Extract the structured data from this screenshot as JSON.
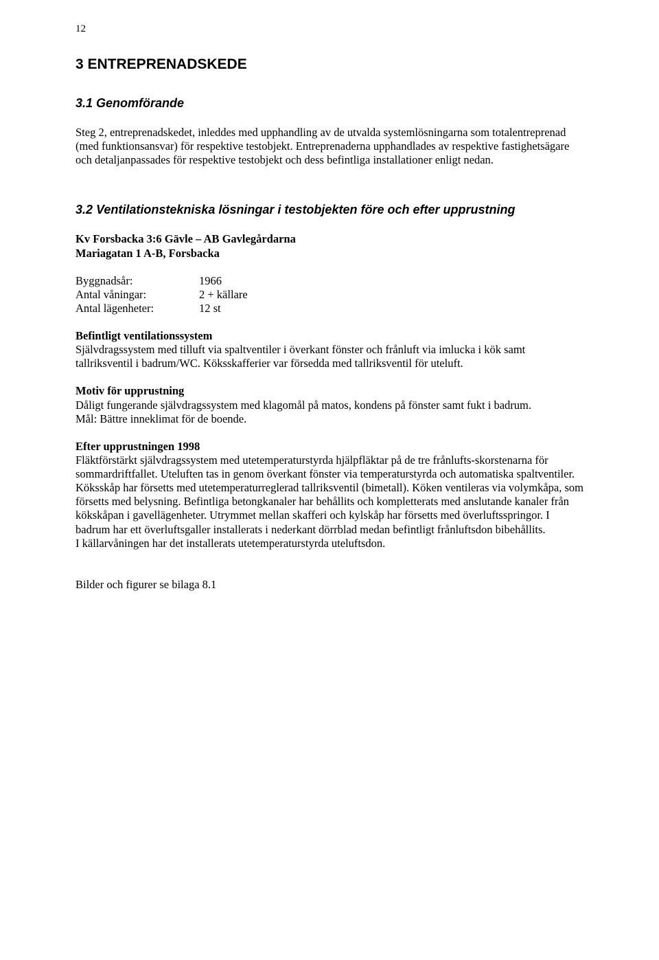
{
  "page_number": "12",
  "section3": {
    "heading": "3   ENTREPRENADSKEDE",
    "s31": {
      "heading": "3.1   Genomförande",
      "p1": "Steg 2, entreprenadskedet, inleddes med upphandling av de utvalda systemlösningarna som totalentreprenad (med funktionsansvar) för respektive testobjekt. Entreprenaderna upphandlades av respektive fastighetsägare och detaljanpassades för respektive testobjekt och dess befintliga installationer enligt nedan."
    },
    "s32": {
      "heading": "3.2   Ventilationstekniska lösningar i testobjekten före och efter upprustning",
      "object_title": "Kv Forsbacka 3:6 Gävle – AB Gavlegårdarna",
      "object_subtitle": "Mariagatan 1 A-B, Forsbacka",
      "specs": {
        "byggnadsar_label": "Byggnadsår:",
        "byggnadsar_value": "1966",
        "vaningar_label": "Antal våningar:",
        "vaningar_value": "2 + källare",
        "lagenheter_label": "Antal lägenheter:",
        "lagenheter_value": "12 st"
      },
      "befintligt": {
        "title": "Befintligt ventilationssystem",
        "text": "Självdragssystem med tilluft via spaltventiler i överkant fönster och frånluft via imlucka i kök samt tallriksventil i badrum/WC. Köksskafferier var försedda med tallriksventil för uteluft."
      },
      "motiv": {
        "title": "Motiv för upprustning",
        "text1": "Dåligt fungerande självdragssystem med klagomål på matos, kondens på fönster samt fukt i badrum.",
        "text2": "Mål: Bättre inneklimat för de boende."
      },
      "efter": {
        "title": "Efter upprustningen 1998",
        "text1": "Fläktförstärkt självdragssystem med utetemperaturstyrda hjälpfläktar på de tre frånlufts-skorstenarna för sommardriftfallet. Uteluften tas in genom överkant fönster via temperaturstyrda och automatiska spaltventiler. Köksskåp har försetts med utetemperaturreglerad tallriksventil (bimetall). Köken ventileras via volymkåpa, som försetts med belysning. Befintliga betongkanaler har behållits och kompletterats med anslutande kanaler från kökskåpan i gavellägenheter. Utrymmet mellan skafferi och kylskåp har försetts med överluftsspringor. I badrum har ett överluftsgaller installerats i nederkant dörrblad medan befintligt frånluftsdon bibehållits.",
        "text2": "I källarvåningen har det installerats utetemperaturstyrda uteluftsdon."
      },
      "bilaga": "Bilder och figurer se bilaga 8.1"
    }
  }
}
